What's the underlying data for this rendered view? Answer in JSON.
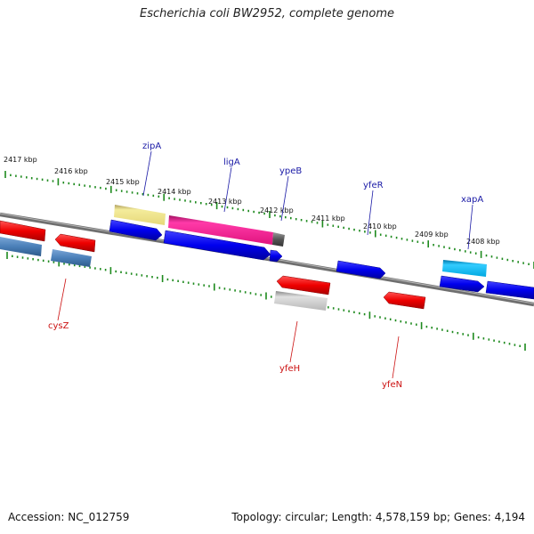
{
  "title": "Escherichia coli BW2952, complete genome",
  "footer": {
    "accession": "Accession: NC_012759",
    "topology": "Topology: circular; Length: 4,578,159 bp; Genes: 4,194"
  },
  "colors": {
    "backbone": "#7a7a7a",
    "tick": "#1e8a1e",
    "label_top": "#1a1aa6",
    "label_bottom": "#cc1111"
  },
  "ticks": [
    {
      "label": "2417 kbp"
    },
    {
      "label": "2416 kbp"
    },
    {
      "label": "2415 kbp"
    },
    {
      "label": "2414 kbp"
    },
    {
      "label": "2413 kbp"
    },
    {
      "label": "2412 kbp"
    },
    {
      "label": "2411 kbp"
    },
    {
      "label": "2410 kbp"
    },
    {
      "label": "2409 kbp"
    },
    {
      "label": "2408 kbp"
    }
  ],
  "gene_labels_top": [
    {
      "name": "zipA"
    },
    {
      "name": "ligA"
    },
    {
      "name": "ypeB"
    },
    {
      "name": "yfeR"
    },
    {
      "name": "xapA"
    }
  ],
  "gene_labels_bottom": [
    {
      "name": "cysZ"
    },
    {
      "name": "yfeH"
    },
    {
      "name": "yfeN"
    }
  ]
}
